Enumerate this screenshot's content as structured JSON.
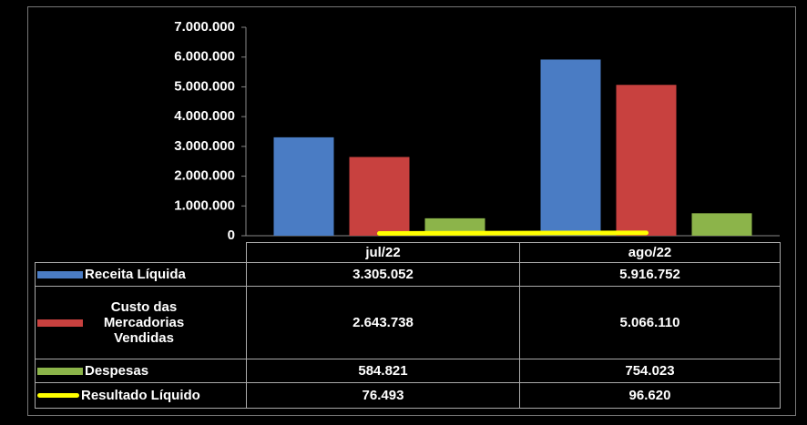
{
  "chart_data": {
    "type": "bar",
    "categories": [
      "jul/22",
      "ago/22"
    ],
    "series": [
      {
        "name": "Receita Líquida",
        "color": "#4a7cc4",
        "values": [
          3305052,
          5916752
        ],
        "value_labels": [
          "3.305.052",
          "5.916.752"
        ]
      },
      {
        "name": "Custo das Mercadorias Vendidas",
        "color": "#c8413f",
        "values": [
          2643738,
          5066110
        ],
        "value_labels": [
          "2.643.738",
          "5.066.110"
        ]
      },
      {
        "name": "Despesas",
        "color": "#8cb44a",
        "values": [
          584821,
          754023
        ],
        "value_labels": [
          "584.821",
          "754.023"
        ]
      },
      {
        "name": "Resultado Líquido",
        "type": "line",
        "color": "#ffff00",
        "values": [
          76493,
          96620
        ],
        "value_labels": [
          "76.493",
          "96.620"
        ]
      }
    ],
    "ylim": [
      0,
      7000000
    ],
    "yticks": [
      0,
      {
        "value": 1000000,
        "label": "1.000.000"
      },
      {
        "value": 2000000,
        "label": "2.000.000"
      },
      {
        "value": 3000000,
        "label": "3.000.000"
      },
      {
        "value": 4000000,
        "label": "4.000.000"
      },
      {
        "value": 5000000,
        "label": "5.000.000"
      },
      {
        "value": 6000000,
        "label": "6.000.000"
      },
      {
        "value": 7000000,
        "label": "7.000.000"
      }
    ],
    "grid": false
  }
}
